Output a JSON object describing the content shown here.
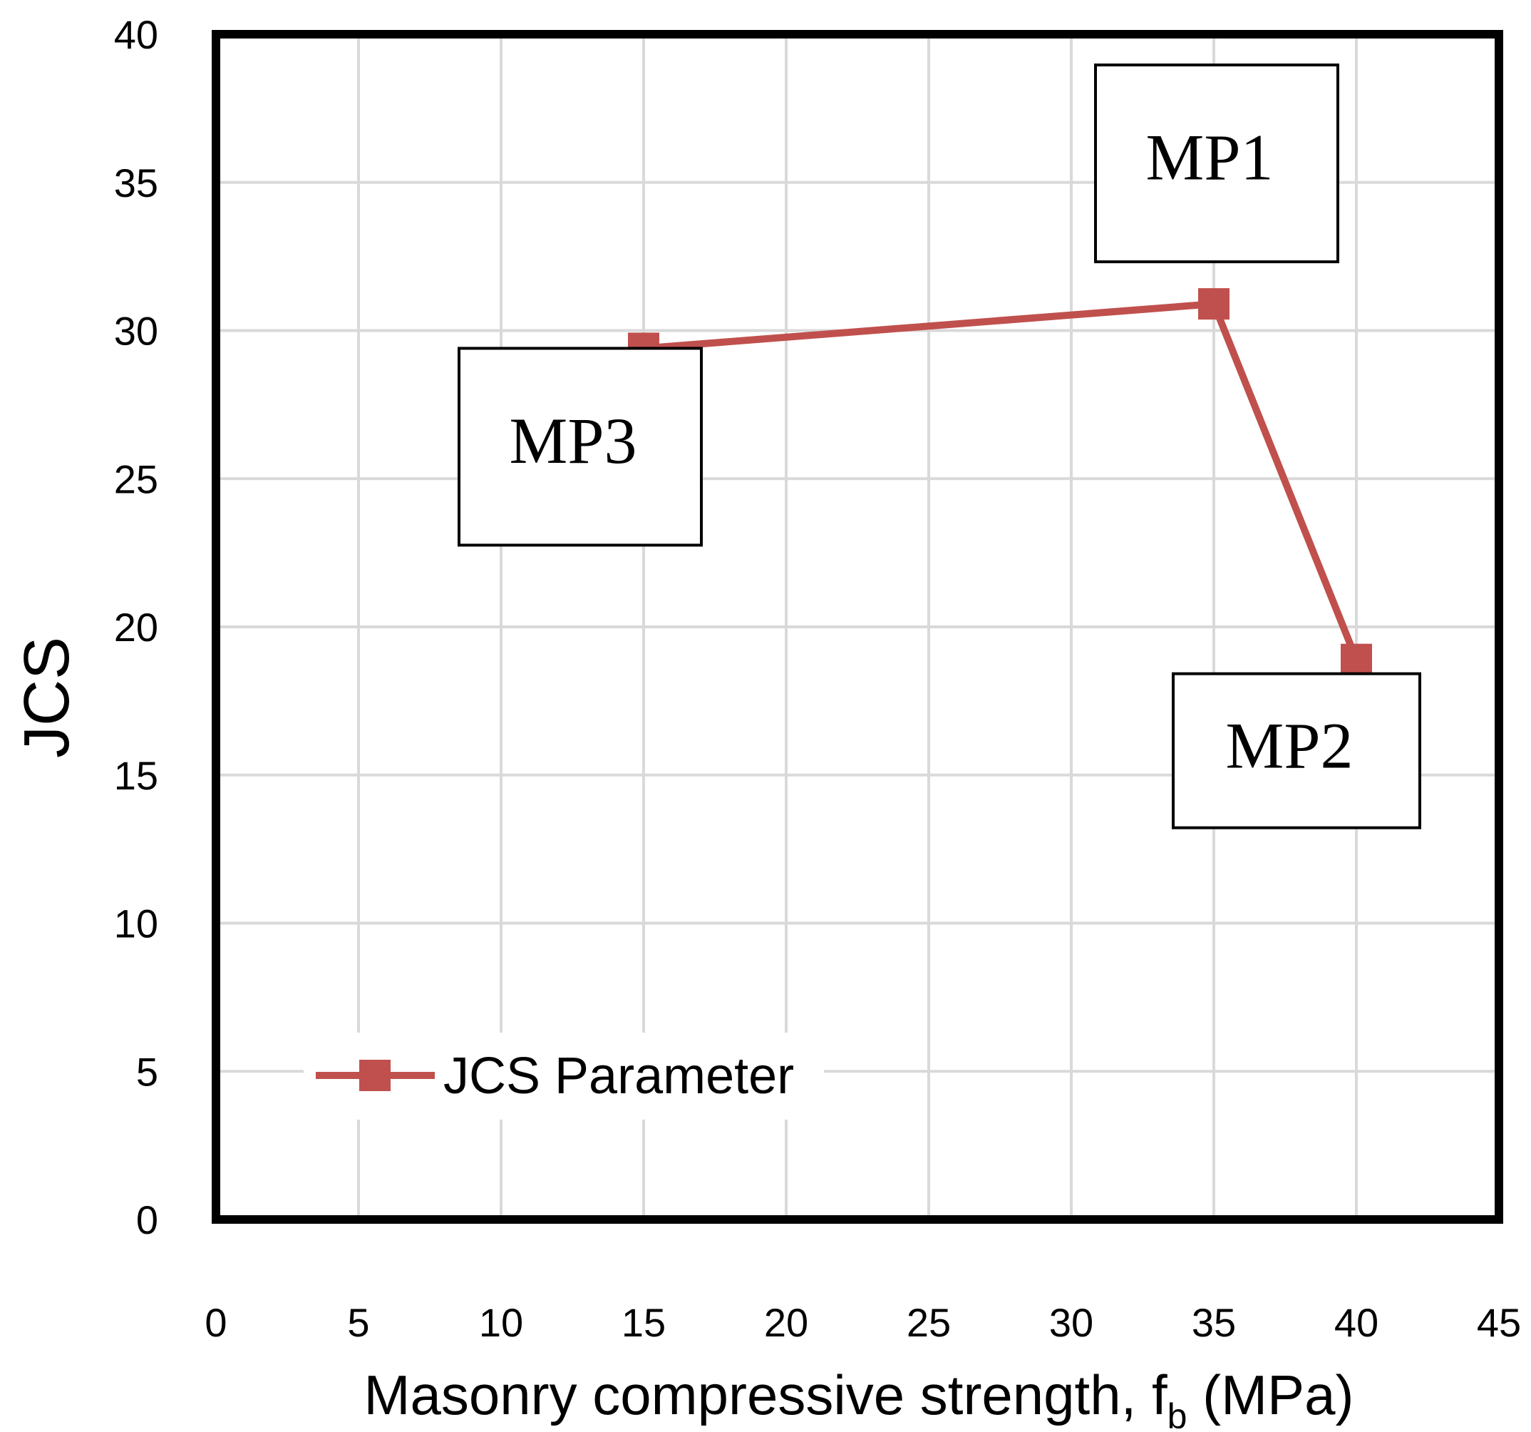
{
  "chart_data": {
    "type": "line",
    "title": "",
    "xlabel": "Masonry compressive strength, f",
    "xlabel_subscript": "b",
    "xlabel_suffix": " (MPa)",
    "ylabel": "JCS",
    "xlim": [
      0,
      45
    ],
    "ylim": [
      0,
      40
    ],
    "xticks": [
      "0",
      "5",
      "10",
      "15",
      "20",
      "25",
      "30",
      "35",
      "40",
      "45"
    ],
    "yticks": [
      "0",
      "5",
      "10",
      "15",
      "20",
      "25",
      "30",
      "35",
      "40"
    ],
    "grid": true,
    "legend_position": "bottom-left",
    "series": [
      {
        "name": "JCS Parameter",
        "color": "#c0504d",
        "marker": "square",
        "points": [
          {
            "x": 15,
            "y": 29.4
          },
          {
            "x": 35,
            "y": 30.9
          },
          {
            "x": 40,
            "y": 18.9
          }
        ]
      }
    ],
    "annotations": [
      {
        "text": "MP1",
        "x": 35,
        "y": 30.9
      },
      {
        "text": "MP2",
        "x": 40,
        "y": 18.9
      },
      {
        "text": "MP3",
        "x": 15,
        "y": 29.4
      }
    ]
  }
}
